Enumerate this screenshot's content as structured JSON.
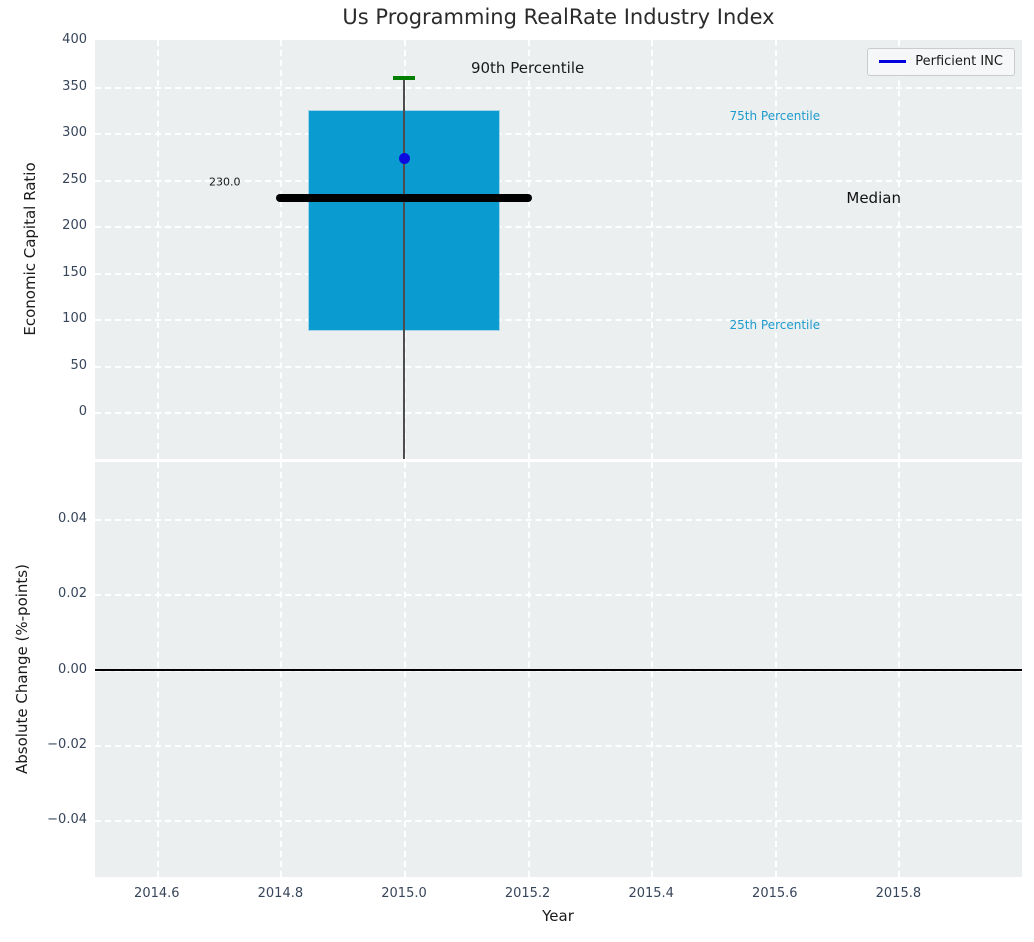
{
  "figure": {
    "title": "Us Programming RealRate Industry Index",
    "background_color": "#ffffff",
    "axes_background_color": "#ebeff0",
    "grid_color": "#ffffff",
    "tick_color": "#37455a"
  },
  "chart_data": [
    {
      "type": "box",
      "title": "Us Programming RealRate Industry Index",
      "ylabel": "Economic Capital Ratio",
      "xlabel": "",
      "xlim": [
        2014.5,
        2016.0
      ],
      "ylim": [
        -50,
        400
      ],
      "yticks": [
        0,
        50,
        100,
        150,
        200,
        250,
        300,
        350,
        400
      ],
      "xticks": [
        2014.6,
        2014.8,
        2015.0,
        2015.2,
        2015.4,
        2015.6,
        2015.8
      ],
      "grid": true,
      "legend": {
        "position": "upper right",
        "entries": [
          {
            "label": "Perficient INC",
            "color": "#0000dd"
          }
        ]
      },
      "boxes": [
        {
          "x": 2015.0,
          "box_halfwidth": 0.155,
          "median_line_halfwidth": 0.207,
          "cap_halfwidth": 0.018,
          "q1": 87,
          "median": 230,
          "q3": 325,
          "p90": 359,
          "whisker_low_clipped": true,
          "box_color": "#0a9bd1",
          "median_color": "#000000",
          "p90_cap_color": "#038003",
          "median_value_label": "230.0"
        }
      ],
      "points": [
        {
          "label": "Perficient INC",
          "x": 2015.0,
          "y": 273,
          "color": "#0b0be0"
        }
      ],
      "annotations": [
        {
          "text": "90th Percentile",
          "x": 2015.2,
          "y": 370,
          "color": "#1a1a1a",
          "size": 15
        },
        {
          "text": "230.0",
          "x": 2014.71,
          "y": 248,
          "color": "#1a1a1a",
          "size": 11
        },
        {
          "text": "75th Percentile",
          "x": 2015.6,
          "y": 318,
          "color": "#1e9bcd",
          "size": 12
        },
        {
          "text": "Median",
          "x": 2015.76,
          "y": 230,
          "color": "#111111",
          "size": 15
        },
        {
          "text": "25th Percentile",
          "x": 2015.6,
          "y": 94,
          "color": "#1e9bcd",
          "size": 12
        }
      ]
    },
    {
      "type": "line",
      "title": "",
      "ylabel": "Absolute Change (%-points)",
      "xlabel": "Year",
      "xlim": [
        2014.5,
        2016.0
      ],
      "ylim": [
        -0.055,
        0.055
      ],
      "yticks": [
        0.04,
        0.02,
        0.0,
        -0.02,
        -0.04
      ],
      "ytick_labels": [
        "0.04",
        "0.02",
        "0.00",
        "−0.02",
        "−0.04"
      ],
      "xticks": [
        2014.6,
        2014.8,
        2015.0,
        2015.2,
        2015.4,
        2015.6,
        2015.8
      ],
      "xtick_labels": [
        "2014.6",
        "2014.8",
        "2015.0",
        "2015.2",
        "2015.4",
        "2015.6",
        "2015.8"
      ],
      "grid": true,
      "zero_line_y": 0.0,
      "series": []
    }
  ]
}
